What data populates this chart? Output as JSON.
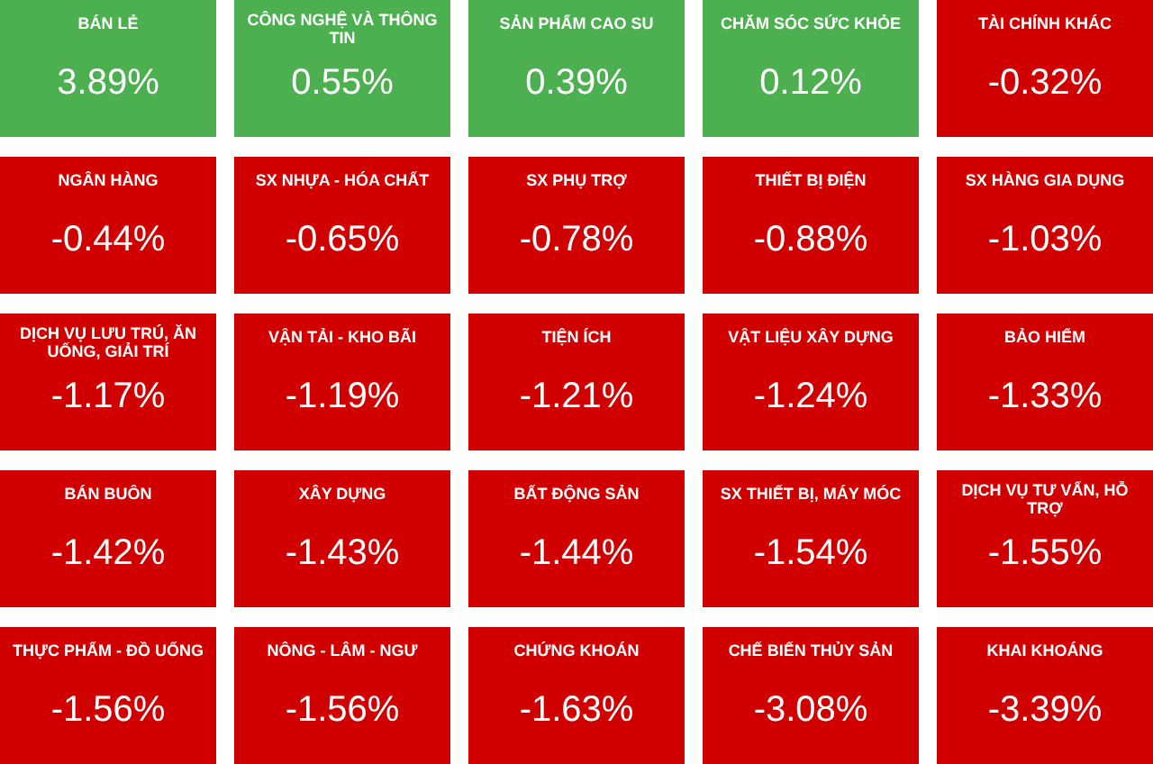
{
  "chart_data": {
    "type": "other",
    "categories": [
      "BÁN LẺ",
      "CÔNG NGHỆ VÀ THÔNG TIN",
      "SẢN PHẨM CAO SU",
      "CHĂM SÓC SỨC KHỎE",
      "TÀI CHÍNH KHÁC",
      "NGÂN HÀNG",
      "SX NHỰA - HÓA CHẤT",
      "SX PHỤ TRỢ",
      "THIẾT BỊ ĐIỆN",
      "SX HÀNG GIA DỤNG",
      "DỊCH VỤ LƯU TRÚ, ĂN UỐNG, GIẢI TRÍ",
      "VẬN TẢI - KHO BÃI",
      "TIỆN ÍCH",
      "VẬT LIỆU XÂY DỰNG",
      "BẢO HIỂM",
      "BÁN BUÔN",
      "XÂY DỰNG",
      "BẤT ĐỘNG SẢN",
      "SX THIẾT BỊ, MÁY MÓC",
      "DỊCH VỤ TƯ VẤN, HỖ TRỢ",
      "THỰC PHẨM - ĐỒ UỐNG",
      "NÔNG - LÂM - NGƯ",
      "CHỨNG KHOÁN",
      "CHẾ BIẾN THỦY SẢN",
      "KHAI KHOÁNG"
    ],
    "values": [
      3.89,
      0.55,
      0.39,
      0.12,
      -0.32,
      -0.44,
      -0.65,
      -0.78,
      -0.88,
      -1.03,
      -1.17,
      -1.19,
      -1.21,
      -1.24,
      -1.33,
      -1.42,
      -1.43,
      -1.44,
      -1.54,
      -1.55,
      -1.56,
      -1.56,
      -1.63,
      -3.08,
      -3.39
    ],
    "value_labels": [
      "3.89%",
      "0.55%",
      "0.39%",
      "0.12%",
      "-0.32%",
      "-0.44%",
      "-0.65%",
      "-0.78%",
      "-0.88%",
      "-1.03%",
      "-1.17%",
      "-1.19%",
      "-1.21%",
      "-1.24%",
      "-1.33%",
      "-1.42%",
      "-1.43%",
      "-1.44%",
      "-1.54%",
      "-1.55%",
      "-1.56%",
      "-1.56%",
      "-1.63%",
      "-3.08%",
      "-3.39%"
    ]
  }
}
